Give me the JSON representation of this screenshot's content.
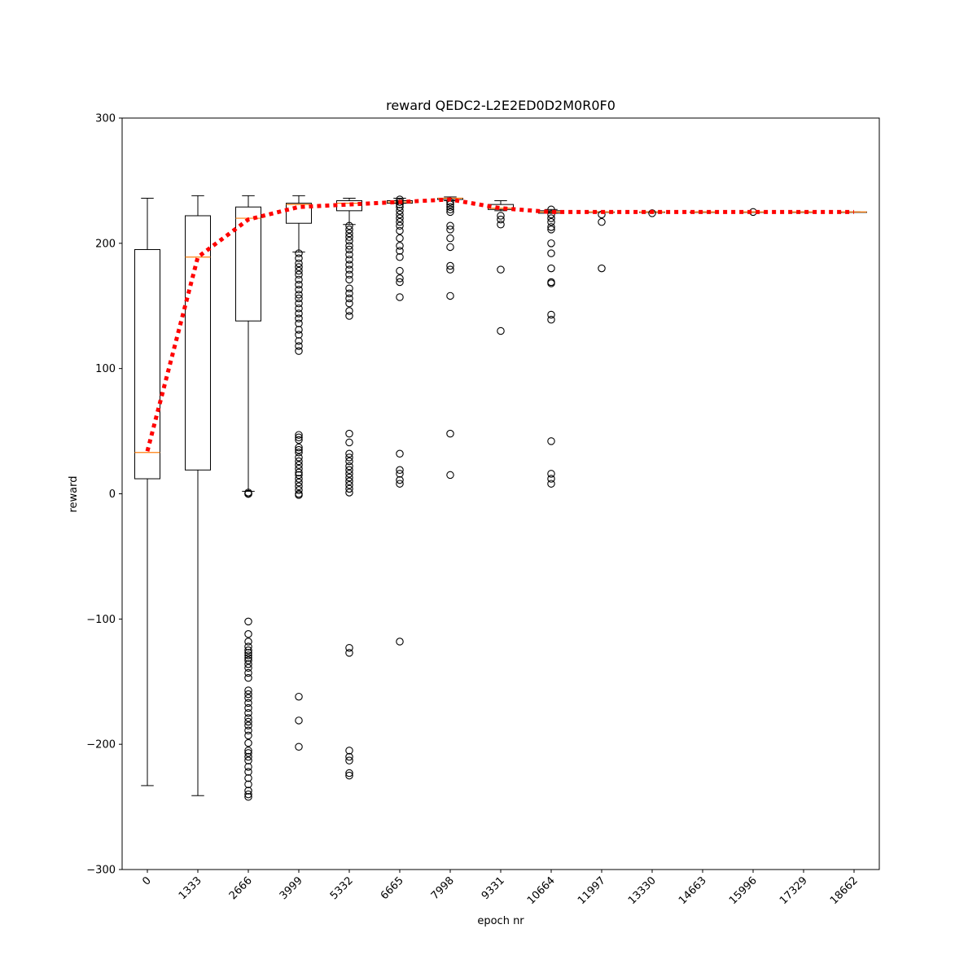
{
  "chart_data": {
    "type": "box",
    "title": "reward QEDC2-L2E2ED0D2M0R0F0",
    "xlabel": "epoch nr",
    "ylabel": "reward",
    "ylim": [
      -300,
      300
    ],
    "yticks": [
      -300,
      -200,
      -100,
      0,
      100,
      200,
      300
    ],
    "categories": [
      "0",
      "1333",
      "2666",
      "3999",
      "5332",
      "6665",
      "7998",
      "9331",
      "10664",
      "11997",
      "13330",
      "14663",
      "15996",
      "17329",
      "18662"
    ],
    "boxes": [
      {
        "whislo": -233,
        "q1": 12,
        "med": 33,
        "q3": 195,
        "whishi": 236,
        "fliers": []
      },
      {
        "whislo": -241,
        "q1": 19,
        "med": 189,
        "q3": 222,
        "whishi": 238,
        "fliers": []
      },
      {
        "whislo": 2,
        "q1": 138,
        "med": 220,
        "q3": 229,
        "whishi": 238,
        "fliers": [
          1,
          0,
          0,
          0,
          -102,
          -112,
          -118,
          -122,
          -125,
          -127,
          -129,
          -131,
          -133,
          -136,
          -139,
          -143,
          -147,
          -157,
          -160,
          -163,
          -167,
          -171,
          -175,
          -179,
          -182,
          -185,
          -189,
          -193,
          -199,
          -205,
          -207,
          -210,
          -213,
          -218,
          -222,
          -227,
          -232,
          -237,
          -240,
          -242
        ]
      },
      {
        "whislo": 193,
        "q1": 216,
        "med": 231,
        "q3": 232,
        "whishi": 238,
        "fliers": [
          192,
          188,
          184,
          181,
          178,
          175,
          171,
          167,
          163,
          159,
          156,
          152,
          148,
          144,
          140,
          136,
          131,
          127,
          122,
          118,
          114,
          47,
          45,
          43,
          37,
          35,
          33,
          29,
          26,
          23,
          20,
          17,
          15,
          12,
          9,
          6,
          3,
          0,
          -1,
          -162,
          -181,
          -202
        ]
      },
      {
        "whislo": 215,
        "q1": 226,
        "med": 232,
        "q3": 234,
        "whishi": 236,
        "fliers": [
          214,
          211,
          208,
          205,
          202,
          198,
          195,
          191,
          187,
          183,
          179,
          175,
          171,
          164,
          160,
          156,
          152,
          146,
          142,
          48,
          41,
          32,
          29,
          26,
          22,
          19,
          16,
          13,
          10,
          7,
          4,
          1,
          -123,
          -127,
          -205,
          -210,
          -213,
          -223,
          -225
        ]
      },
      {
        "whislo": 232,
        "q1": 232,
        "med": 233,
        "q3": 234,
        "whishi": 236,
        "fliers": [
          235,
          233,
          231,
          229,
          226,
          223,
          220,
          217,
          214,
          210,
          204,
          198,
          194,
          189,
          178,
          172,
          169,
          157,
          32,
          19,
          16,
          11,
          8,
          -118
        ]
      },
      {
        "whislo": 234,
        "q1": 235,
        "med": 236,
        "q3": 236,
        "whishi": 237,
        "fliers": [
          233,
          231,
          229,
          227,
          225,
          214,
          211,
          204,
          197,
          182,
          179,
          158,
          48,
          15
        ]
      },
      {
        "whislo": 226,
        "q1": 227,
        "med": 228,
        "q3": 231,
        "whishi": 234,
        "fliers": [
          222,
          219,
          215,
          179,
          130
        ]
      },
      {
        "whislo": 224,
        "q1": 224,
        "med": 225,
        "q3": 226,
        "whishi": 227,
        "fliers": [
          227,
          223,
          220,
          217,
          213,
          211,
          200,
          192,
          180,
          169,
          168,
          143,
          139,
          42,
          16,
          12,
          8
        ]
      },
      {
        "whislo": 225,
        "q1": 225,
        "med": 225,
        "q3": 225,
        "whishi": 225,
        "fliers": [
          223,
          217,
          180
        ]
      },
      {
        "whislo": 225,
        "q1": 225,
        "med": 225,
        "q3": 225,
        "whishi": 225,
        "fliers": [
          224
        ]
      },
      {
        "whislo": 225,
        "q1": 225,
        "med": 225,
        "q3": 225,
        "whishi": 225,
        "fliers": []
      },
      {
        "whislo": 225,
        "q1": 225,
        "med": 225,
        "q3": 225,
        "whishi": 225,
        "fliers": [
          225
        ]
      },
      {
        "whislo": 225,
        "q1": 225,
        "med": 225,
        "q3": 225,
        "whishi": 225,
        "fliers": []
      },
      {
        "whislo": 225,
        "q1": 225,
        "med": 225,
        "q3": 225,
        "whishi": 225,
        "fliers": []
      }
    ],
    "line": {
      "style": "dotted",
      "color": "#ff0000",
      "values": [
        34,
        189,
        219,
        229,
        231,
        233,
        235,
        228,
        225,
        225,
        225,
        225,
        225,
        225,
        225
      ]
    },
    "colors": {
      "median": "#ff7f0e",
      "box": "#000000",
      "mean_line": "#ff0000"
    },
    "grid": false,
    "xtick_rotation": 45
  }
}
